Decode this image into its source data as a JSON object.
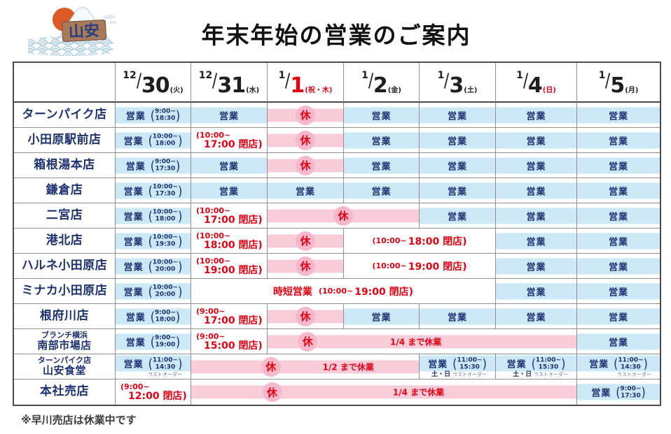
{
  "title": "年末年始の営業のご案内",
  "logo": {
    "text": "山安"
  },
  "footnote": "※早川売店は休業中です",
  "labels": {
    "open": "営業",
    "closed": "休"
  },
  "colors": {
    "open_bg": "#cce8f7",
    "closed_bg": "#f9ccda",
    "closed_circle": "#f6b8cb",
    "red": "#e60012",
    "navy": "#1d3173"
  },
  "table": {
    "columns": [
      {
        "month": "12",
        "day": "30",
        "week": "(火)"
      },
      {
        "month": "12",
        "day": "31",
        "week": "(水)"
      },
      {
        "month": "1",
        "day": "1",
        "week": "(祝・木)",
        "day_red": true,
        "week_red": true
      },
      {
        "month": "1",
        "day": "2",
        "week": "(金)"
      },
      {
        "month": "1",
        "day": "3",
        "week": "(土)"
      },
      {
        "month": "1",
        "day": "4",
        "week": "(日)",
        "week_red": true
      },
      {
        "month": "1",
        "day": "5",
        "week": "(月)"
      }
    ],
    "rows": [
      {
        "name": "ターンパイク店",
        "cells": [
          {
            "type": "open",
            "t1": "9:00~",
            "t2": "18:30"
          },
          {
            "type": "open"
          },
          {
            "type": "closed",
            "span": 1
          },
          {
            "type": "open"
          },
          {
            "type": "open"
          },
          {
            "type": "open"
          },
          {
            "type": "open"
          }
        ]
      },
      {
        "name": "小田原駅前店",
        "cells": [
          {
            "type": "open",
            "t1": "10:00~",
            "t2": "18:00"
          },
          {
            "type": "red2",
            "l1": "(10:00~",
            "l2": "17:00 閉店)"
          },
          {
            "type": "closed",
            "span": 1
          },
          {
            "type": "open"
          },
          {
            "type": "open"
          },
          {
            "type": "open"
          },
          {
            "type": "open"
          }
        ]
      },
      {
        "name": "箱根湯本店",
        "cells": [
          {
            "type": "open",
            "t1": "9:00~",
            "t2": "17:30"
          },
          {
            "type": "open"
          },
          {
            "type": "closed",
            "span": 1
          },
          {
            "type": "open"
          },
          {
            "type": "open"
          },
          {
            "type": "open"
          },
          {
            "type": "open"
          }
        ]
      },
      {
        "name": "鎌倉店",
        "cells": [
          {
            "type": "open",
            "t1": "10:00~",
            "t2": "17:30"
          },
          {
            "type": "open"
          },
          {
            "type": "open"
          },
          {
            "type": "open"
          },
          {
            "type": "open"
          },
          {
            "type": "open"
          },
          {
            "type": "open"
          }
        ]
      },
      {
        "name": "二宮店",
        "cells": [
          {
            "type": "open",
            "t1": "10:00~",
            "t2": "18:00"
          },
          {
            "type": "red2",
            "l1": "(10:00~",
            "l2": "17:00 閉店)"
          },
          {
            "type": "closed",
            "span": 2,
            "circle": 50
          },
          {
            "type": "open"
          },
          {
            "type": "open"
          },
          {
            "type": "open"
          }
        ]
      },
      {
        "name": "港北店",
        "cells": [
          {
            "type": "open",
            "t1": "10:00~",
            "t2": "19:30"
          },
          {
            "type": "red2",
            "l1": "(10:00~",
            "l2": "18:00 閉店)"
          },
          {
            "type": "closed",
            "span": 1
          },
          {
            "type": "red1",
            "span": 2,
            "small": "(10:00~",
            "large": "18:00 閉店)"
          },
          {
            "type": "open"
          },
          {
            "type": "open"
          }
        ]
      },
      {
        "name": "ハルネ小田原店",
        "cells": [
          {
            "type": "open",
            "t1": "10:00~",
            "t2": "20:00"
          },
          {
            "type": "red2",
            "l1": "(10:00~",
            "l2": "19:00 閉店)"
          },
          {
            "type": "closed",
            "span": 1
          },
          {
            "type": "red1",
            "span": 2,
            "small": "(10:00~",
            "large": "19:00 閉店)"
          },
          {
            "type": "open"
          },
          {
            "type": "open"
          }
        ]
      },
      {
        "name": "ミナカ小田原店",
        "cells": [
          {
            "type": "open",
            "t1": "10:00~",
            "t2": "20:00"
          },
          {
            "type": "red1",
            "span": 4,
            "bold": "時短営業",
            "small": "(10:00~",
            "large": "19:00 閉店)"
          },
          {
            "type": "open"
          },
          {
            "type": "open"
          }
        ]
      },
      {
        "name": "根府川店",
        "cells": [
          {
            "type": "open",
            "t1": "9:00~",
            "t2": "18:00"
          },
          {
            "type": "red2",
            "l1": "(9:00~",
            "l2": "17:00 閉店)"
          },
          {
            "type": "closed",
            "span": 1
          },
          {
            "type": "open"
          },
          {
            "type": "open"
          },
          {
            "type": "open"
          },
          {
            "type": "open"
          }
        ]
      },
      {
        "name_small": "ブランチ横浜",
        "name": "南部市場店",
        "cells": [
          {
            "type": "open",
            "t1": "9:00~",
            "t2": "19:00"
          },
          {
            "type": "red2",
            "l1": "(9:00~",
            "l2": "15:00 閉店)"
          },
          {
            "type": "closed",
            "span": 4,
            "circle": 13,
            "text": "1/4 まで休業",
            "text_pos": 48
          },
          {
            "type": "open"
          }
        ]
      },
      {
        "name_small": "ターンパイク店",
        "name": "山安食堂",
        "cells": [
          {
            "type": "open",
            "t1": "11:00~",
            "t2": "14:30",
            "note": "ラストオーダー"
          },
          {
            "type": "closed",
            "span": 3,
            "circle": 35,
            "text": "1/2 まで休業",
            "text_pos": 69
          },
          {
            "type": "open",
            "t1": "11:00~",
            "t2": "15:30",
            "note_bold": "土・日",
            "note": "ラストオーダー"
          },
          {
            "type": "open",
            "t1": "11:00~",
            "t2": "15:30",
            "note_bold": "土・日",
            "note": "ラストオーダー"
          },
          {
            "type": "open",
            "t1": "11:00~",
            "t2": "14:30",
            "note": "ラストオーダー"
          }
        ]
      },
      {
        "name": "本社売店",
        "cells": [
          {
            "type": "red2",
            "l1": "(9:00~",
            "l2": "12:00 閉店)"
          },
          {
            "type": "closed",
            "span": 5,
            "circle": 21,
            "text": "1/4 まで休業",
            "text_pos": 59
          },
          {
            "type": "open",
            "t1": "9:00~",
            "t2": "17:30"
          }
        ]
      }
    ]
  }
}
